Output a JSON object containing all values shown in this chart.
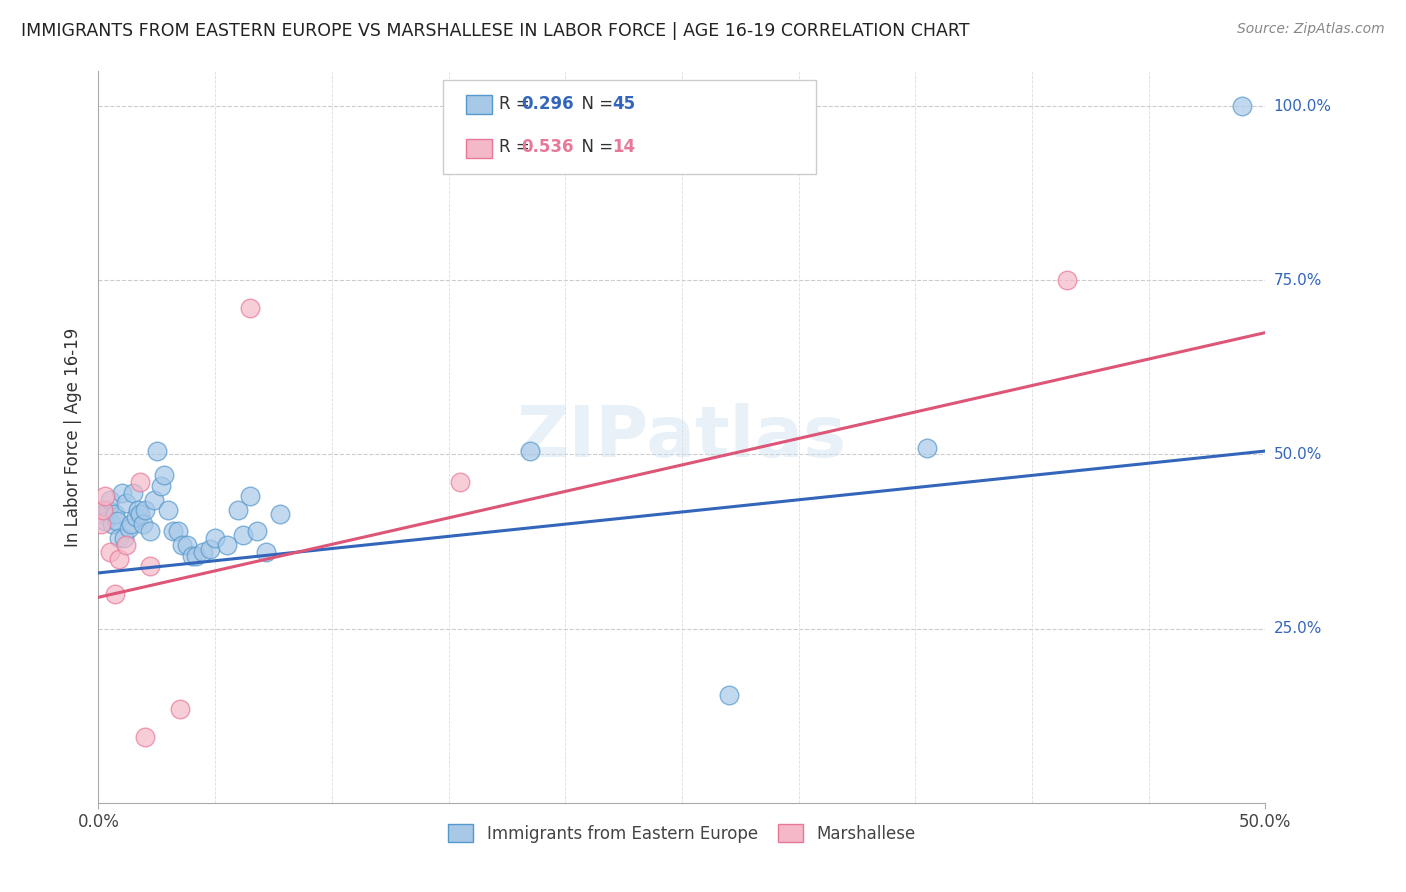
{
  "title": "IMMIGRANTS FROM EASTERN EUROPE VS MARSHALLESE IN LABOR FORCE | AGE 16-19 CORRELATION CHART",
  "source": "Source: ZipAtlas.com",
  "ylabel": "In Labor Force | Age 16-19",
  "xlim": [
    0.0,
    0.5
  ],
  "ylim": [
    0.0,
    1.05
  ],
  "xtick_vals": [
    0.0,
    0.5
  ],
  "xtick_labels": [
    "0.0%",
    "50.0%"
  ],
  "ytick_vals": [
    0.25,
    0.5,
    0.75,
    1.0
  ],
  "ytick_labels": [
    "25.0%",
    "50.0%",
    "75.0%",
    "100.0%"
  ],
  "blue_color": "#a8c8e8",
  "pink_color": "#f4b8c8",
  "blue_edge_color": "#5599cc",
  "pink_edge_color": "#e87898",
  "blue_line_color": "#3366bb",
  "pink_line_color": "#dd5577",
  "blue_R": 0.296,
  "blue_N": 45,
  "pink_R": 0.536,
  "pink_N": 14,
  "watermark": "ZIPatlas",
  "blue_trend_x0": 0.0,
  "blue_trend_y0": 0.33,
  "blue_trend_x1": 0.5,
  "blue_trend_y1": 0.505,
  "pink_trend_x0": 0.0,
  "pink_trend_y0": 0.295,
  "pink_trend_x1": 0.5,
  "pink_trend_y1": 0.675,
  "blue_x": [
    0.002,
    0.003,
    0.004,
    0.005,
    0.006,
    0.007,
    0.008,
    0.009,
    0.01,
    0.011,
    0.012,
    0.013,
    0.014,
    0.015,
    0.016,
    0.017,
    0.018,
    0.019,
    0.02,
    0.022,
    0.024,
    0.025,
    0.027,
    0.028,
    0.03,
    0.032,
    0.034,
    0.036,
    0.038,
    0.04,
    0.042,
    0.045,
    0.048,
    0.05,
    0.055,
    0.06,
    0.062,
    0.065,
    0.068,
    0.072,
    0.078,
    0.185,
    0.27,
    0.355,
    0.49
  ],
  "blue_y": [
    0.415,
    0.405,
    0.42,
    0.435,
    0.4,
    0.415,
    0.405,
    0.38,
    0.445,
    0.38,
    0.43,
    0.395,
    0.4,
    0.445,
    0.41,
    0.42,
    0.415,
    0.4,
    0.42,
    0.39,
    0.435,
    0.505,
    0.455,
    0.47,
    0.42,
    0.39,
    0.39,
    0.37,
    0.37,
    0.355,
    0.355,
    0.36,
    0.365,
    0.38,
    0.37,
    0.42,
    0.385,
    0.44,
    0.39,
    0.36,
    0.415,
    0.505,
    0.155,
    0.51,
    1.0
  ],
  "pink_x": [
    0.001,
    0.002,
    0.003,
    0.005,
    0.007,
    0.009,
    0.012,
    0.018,
    0.02,
    0.022,
    0.035,
    0.065,
    0.155,
    0.415
  ],
  "pink_y": [
    0.4,
    0.42,
    0.44,
    0.36,
    0.3,
    0.35,
    0.37,
    0.46,
    0.095,
    0.34,
    0.135,
    0.71,
    0.46,
    0.75
  ]
}
